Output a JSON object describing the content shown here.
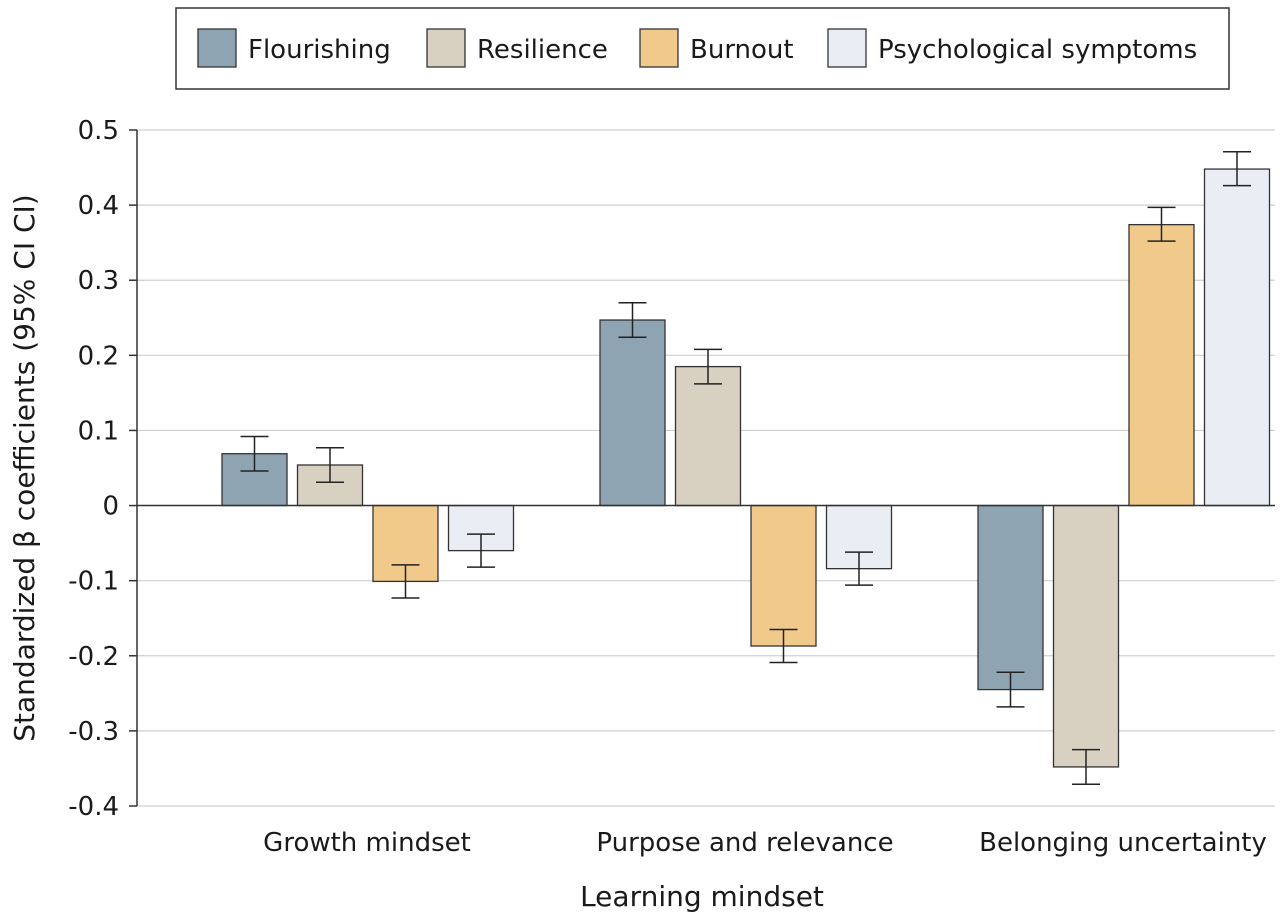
{
  "chart_data": {
    "type": "bar",
    "title": "",
    "xlabel": "Learning mindset",
    "ylabel": "Standardized β coefficients (95% CI CI)",
    "ylim": [
      -0.4,
      0.5
    ],
    "y_ticks": [
      0.5,
      0.4,
      0.3,
      0.2,
      0.1,
      0,
      -0.1,
      -0.2,
      -0.3,
      -0.4
    ],
    "y_tick_labels": [
      "0.5",
      "0.4",
      "0.3",
      "0.2",
      "0.1",
      "0",
      "-0.1",
      "-0.2",
      "-0.3",
      "-0.4"
    ],
    "grid": true,
    "legend_position": "top",
    "categories": [
      "Growth mindset",
      "Purpose and relevance",
      "Belonging uncertainty"
    ],
    "series": [
      {
        "name": "Flourishing",
        "color": "#8fa4b3",
        "values": [
          0.069,
          0.247,
          -0.245
        ],
        "ci": [
          [
            0.046,
            0.092
          ],
          [
            0.224,
            0.27
          ],
          [
            -0.268,
            -0.222
          ]
        ]
      },
      {
        "name": "Resilience",
        "color": "#d8d1c2",
        "values": [
          0.054,
          0.185,
          -0.348
        ],
        "ci": [
          [
            0.031,
            0.077
          ],
          [
            0.162,
            0.208
          ],
          [
            -0.371,
            -0.325
          ]
        ]
      },
      {
        "name": "Burnout",
        "color": "#f0c98b",
        "values": [
          -0.101,
          -0.187,
          0.374
        ],
        "ci": [
          [
            -0.123,
            -0.079
          ],
          [
            -0.209,
            -0.165
          ],
          [
            0.352,
            0.397
          ]
        ]
      },
      {
        "name": "Psychological symptoms",
        "color": "#e9edf4",
        "values": [
          -0.06,
          -0.084,
          0.448
        ],
        "ci": [
          [
            -0.082,
            -0.038
          ],
          [
            -0.106,
            -0.062
          ],
          [
            0.426,
            0.471
          ]
        ]
      }
    ]
  }
}
